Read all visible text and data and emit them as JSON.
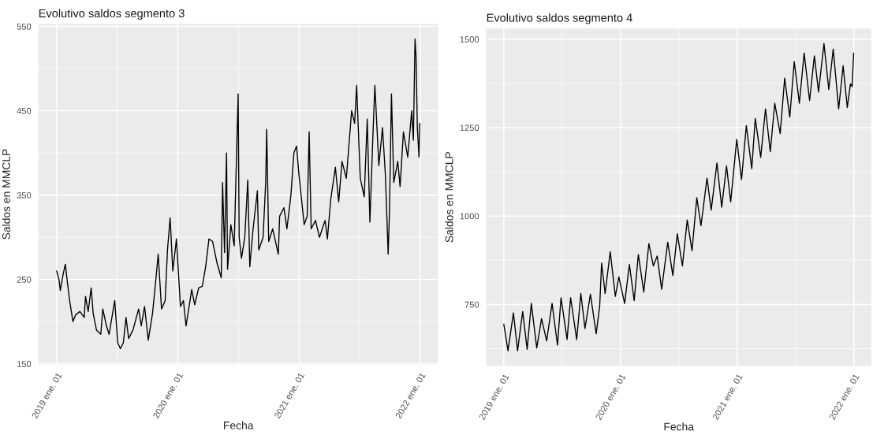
{
  "chart_data": [
    {
      "type": "line",
      "title": "Evolutivo saldos segmento 3",
      "xlabel": "Fecha",
      "ylabel": "Saldos en MMCLP",
      "grid": true,
      "legend": false,
      "xlim": [
        "2018-11-07",
        "2022-02-24"
      ],
      "xticks": [
        {
          "value": "2019-01-01",
          "label": "2019 ene. 01"
        },
        {
          "value": "2019-07-02",
          "label": null
        },
        {
          "value": "2020-01-01",
          "label": "2020 ene. 01"
        },
        {
          "value": "2020-07-02",
          "label": null
        },
        {
          "value": "2021-01-01",
          "label": "2021 ene. 01"
        },
        {
          "value": "2021-07-02",
          "label": null
        },
        {
          "value": "2022-01-01",
          "label": "2022 ene. 01"
        }
      ],
      "ylim": [
        149,
        553
      ],
      "yticks": [
        150,
        {
          "value": 200,
          "label": null
        },
        250,
        {
          "value": 300,
          "label": null
        },
        350,
        {
          "value": 400,
          "label": null
        },
        450,
        {
          "value": 500,
          "label": null
        },
        550
      ],
      "series": [
        {
          "color": "#000000",
          "x": [
            "2019-01-01",
            "2019-01-08",
            "2019-01-12",
            "2019-01-20",
            "2019-01-27",
            "2019-02-02",
            "2019-02-09",
            "2019-02-19",
            "2019-02-27",
            "2019-03-12",
            "2019-03-25",
            "2019-03-29",
            "2019-04-06",
            "2019-04-15",
            "2019-04-21",
            "2019-05-01",
            "2019-05-14",
            "2019-05-20",
            "2019-05-31",
            "2019-06-08",
            "2019-06-25",
            "2019-07-04",
            "2019-07-12",
            "2019-07-21",
            "2019-07-29",
            "2019-08-06",
            "2019-08-19",
            "2019-09-05",
            "2019-09-13",
            "2019-09-23",
            "2019-10-04",
            "2019-10-17",
            "2019-10-27",
            "2019-11-03",
            "2019-11-13",
            "2019-11-24",
            "2019-12-01",
            "2019-12-09",
            "2019-12-17",
            "2019-12-28",
            "2020-01-09",
            "2020-01-18",
            "2020-01-26",
            "2020-02-05",
            "2020-02-12",
            "2020-02-21",
            "2020-03-04",
            "2020-03-15",
            "2020-03-25",
            "2020-04-04",
            "2020-04-15",
            "2020-04-28",
            "2020-05-11",
            "2020-05-15",
            "2020-05-21",
            "2020-05-27",
            "2020-05-30",
            "2020-06-09",
            "2020-06-19",
            "2020-07-01",
            "2020-07-04",
            "2020-07-11",
            "2020-07-21",
            "2020-07-30",
            "2020-08-05",
            "2020-08-15",
            "2020-08-28",
            "2020-09-01",
            "2020-09-14",
            "2020-09-22",
            "2020-09-25",
            "2020-10-01",
            "2020-10-13",
            "2020-10-30",
            "2020-11-03",
            "2020-11-16",
            "2020-11-25",
            "2020-12-07",
            "2020-12-16",
            "2020-12-24",
            "2020-12-31",
            "2021-01-04",
            "2021-01-16",
            "2021-01-25",
            "2021-01-31",
            "2021-02-06",
            "2021-02-19",
            "2021-03-03",
            "2021-03-20",
            "2021-03-27",
            "2021-04-06",
            "2021-04-20",
            "2021-04-30",
            "2021-05-10",
            "2021-05-23",
            "2021-06-08",
            "2021-06-17",
            "2021-06-23",
            "2021-07-04",
            "2021-07-16",
            "2021-07-25",
            "2021-08-02",
            "2021-08-11",
            "2021-08-17",
            "2021-08-29",
            "2021-09-09",
            "2021-09-18",
            "2021-09-26",
            "2021-09-30",
            "2021-10-06",
            "2021-10-13",
            "2021-10-25",
            "2021-11-01",
            "2021-11-11",
            "2021-11-24",
            "2021-12-06",
            "2021-12-11",
            "2021-12-16",
            "2021-12-19",
            "2021-12-23",
            "2021-12-28",
            "2021-12-30"
          ],
          "values": [
            260,
            250,
            237,
            255,
            268,
            248,
            225,
            200,
            208,
            212,
            205,
            230,
            212,
            240,
            210,
            190,
            185,
            215,
            195,
            185,
            225,
            175,
            168,
            175,
            205,
            180,
            190,
            215,
            195,
            218,
            178,
            210,
            250,
            280,
            215,
            225,
            285,
            323,
            260,
            298,
            218,
            225,
            195,
            220,
            238,
            220,
            240,
            242,
            265,
            298,
            295,
            270,
            252,
            365,
            282,
            400,
            262,
            315,
            290,
            470,
            300,
            275,
            300,
            368,
            265,
            310,
            355,
            285,
            300,
            365,
            428,
            295,
            310,
            280,
            325,
            335,
            310,
            350,
            400,
            408,
            375,
            360,
            315,
            325,
            425,
            310,
            320,
            300,
            320,
            298,
            345,
            383,
            342,
            390,
            370,
            450,
            435,
            480,
            370,
            348,
            440,
            318,
            420,
            480,
            385,
            430,
            372,
            280,
            330,
            470,
            365,
            390,
            360,
            425,
            395,
            450,
            415,
            535,
            515,
            430,
            395,
            435
          ]
        }
      ]
    },
    {
      "type": "line",
      "title": "Evolutivo saldos segmento 4",
      "xlabel": "Fecha",
      "ylabel": "Saldos en MMCLP",
      "grid": true,
      "legend": false,
      "xlim": [
        "2018-11-07",
        "2022-02-24"
      ],
      "xticks": [
        {
          "value": "2019-01-01",
          "label": "2019 ene. 01"
        },
        {
          "value": "2019-07-02",
          "label": null
        },
        {
          "value": "2020-01-01",
          "label": "2020 ene. 01"
        },
        {
          "value": "2020-07-02",
          "label": null
        },
        {
          "value": "2021-01-01",
          "label": "2021 ene. 01"
        },
        {
          "value": "2021-07-02",
          "label": null
        },
        {
          "value": "2022-01-01",
          "label": "2022 ene. 01"
        }
      ],
      "ylim": [
        576,
        1531
      ],
      "yticks": [
        {
          "value": 625,
          "label": null
        },
        750,
        {
          "value": 875,
          "label": null
        },
        1000,
        {
          "value": 1125,
          "label": null
        },
        1250,
        {
          "value": 1375,
          "label": null
        },
        1500
      ],
      "series": [
        {
          "color": "#000000",
          "x": [
            "2019-01-01",
            "2019-01-14",
            "2019-01-31",
            "2019-02-13",
            "2019-03-01",
            "2019-03-15",
            "2019-03-28",
            "2019-04-14",
            "2019-04-29",
            "2019-05-15",
            "2019-06-01",
            "2019-06-18",
            "2019-06-29",
            "2019-07-18",
            "2019-07-29",
            "2019-08-17",
            "2019-08-30",
            "2019-09-12",
            "2019-09-29",
            "2019-10-17",
            "2019-10-28",
            "2019-11-03",
            "2019-11-14",
            "2019-11-30",
            "2019-12-16",
            "2019-12-27",
            "2020-01-14",
            "2020-01-29",
            "2020-02-13",
            "2020-02-26",
            "2020-03-14",
            "2020-03-30",
            "2020-04-13",
            "2020-04-25",
            "2020-05-09",
            "2020-05-28",
            "2020-06-13",
            "2020-06-27",
            "2020-07-13",
            "2020-07-28",
            "2020-08-12",
            "2020-08-27",
            "2020-09-09",
            "2020-09-28",
            "2020-10-11",
            "2020-10-29",
            "2020-11-13",
            "2020-11-28",
            "2020-12-11",
            "2020-12-30",
            "2021-01-14",
            "2021-01-29",
            "2021-02-15",
            "2021-02-26",
            "2021-03-15",
            "2021-03-30",
            "2021-04-14",
            "2021-04-28",
            "2021-05-15",
            "2021-05-29",
            "2021-06-14",
            "2021-06-28",
            "2021-07-14",
            "2021-07-29",
            "2021-08-15",
            "2021-08-30",
            "2021-09-12",
            "2021-09-29",
            "2021-10-14",
            "2021-10-28",
            "2021-11-14",
            "2021-11-28",
            "2021-12-11",
            "2021-12-21",
            "2021-12-26",
            "2021-12-31"
          ],
          "values": [
            694,
            619,
            726,
            619,
            730,
            623,
            753,
            627,
            710,
            647,
            753,
            635,
            769,
            651,
            769,
            651,
            781,
            682,
            779,
            667,
            745,
            867,
            781,
            899,
            773,
            828,
            753,
            863,
            761,
            891,
            785,
            922,
            859,
            887,
            793,
            926,
            832,
            950,
            859,
            989,
            902,
            1052,
            973,
            1107,
            1017,
            1150,
            1025,
            1142,
            1040,
            1217,
            1103,
            1256,
            1134,
            1276,
            1166,
            1303,
            1182,
            1319,
            1233,
            1390,
            1280,
            1437,
            1319,
            1461,
            1327,
            1453,
            1351,
            1488,
            1358,
            1472,
            1303,
            1425,
            1307,
            1374,
            1366,
            1461
          ]
        }
      ]
    }
  ]
}
